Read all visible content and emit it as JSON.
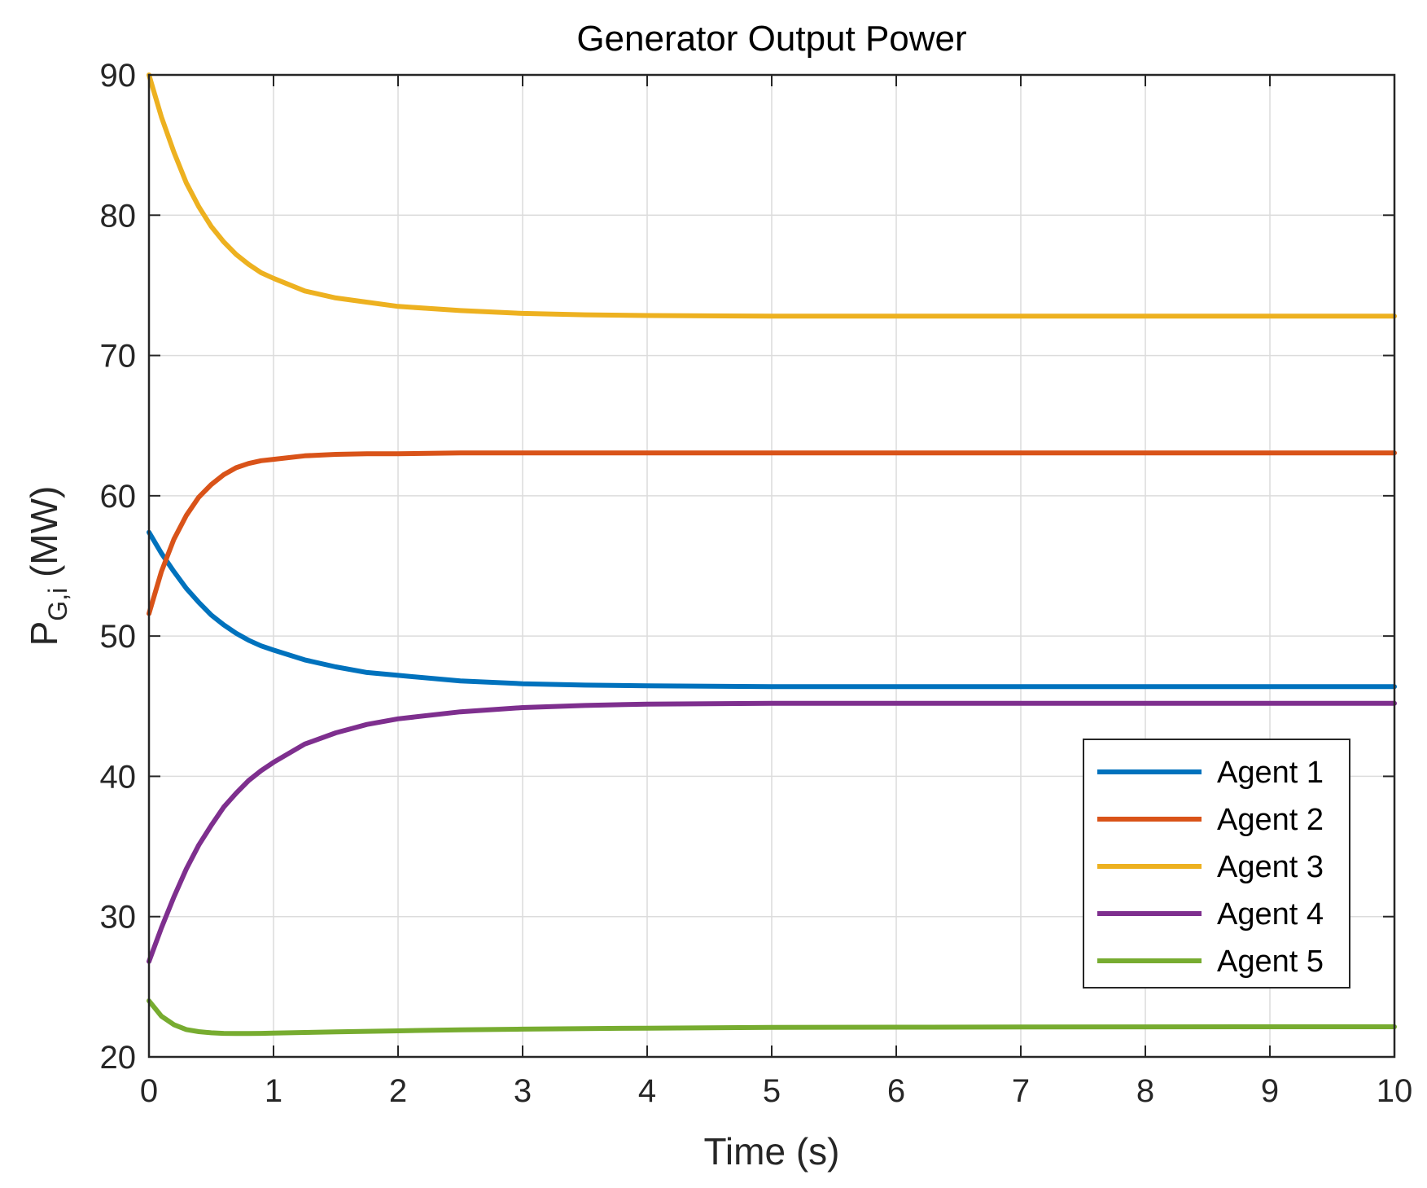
{
  "chart_data": {
    "type": "line",
    "title": "Generator Output Power",
    "xlabel": "Time (s)",
    "ylabel": {
      "main": "P",
      "sub": "G,i",
      "unit": " (MW)"
    },
    "xlim": [
      0,
      10
    ],
    "ylim": [
      20,
      90
    ],
    "xticks": [
      "0",
      "1",
      "2",
      "3",
      "4",
      "5",
      "6",
      "7",
      "8",
      "9",
      "10"
    ],
    "yticks": [
      "20",
      "30",
      "40",
      "50",
      "60",
      "70",
      "80",
      "90"
    ],
    "grid": true,
    "legend_position": "bottom-right",
    "x": [
      0,
      0.1,
      0.2,
      0.3,
      0.4,
      0.5,
      0.6,
      0.7,
      0.8,
      0.9,
      1.0,
      1.25,
      1.5,
      1.75,
      2.0,
      2.5,
      3.0,
      3.5,
      4.0,
      5.0,
      6.0,
      7.0,
      8.0,
      9.0,
      10.0
    ],
    "series": [
      {
        "name": "Agent 1",
        "color": "#0072BD",
        "values": [
          57.4,
          55.9,
          54.6,
          53.4,
          52.4,
          51.5,
          50.8,
          50.2,
          49.7,
          49.3,
          49.0,
          48.3,
          47.8,
          47.4,
          47.2,
          46.8,
          46.6,
          46.5,
          46.45,
          46.4,
          46.4,
          46.4,
          46.4,
          46.4,
          46.4
        ]
      },
      {
        "name": "Agent 2",
        "color": "#D95319",
        "values": [
          51.6,
          54.6,
          56.9,
          58.6,
          59.9,
          60.8,
          61.5,
          62.0,
          62.3,
          62.5,
          62.6,
          62.85,
          62.95,
          63.0,
          63.0,
          63.05,
          63.05,
          63.05,
          63.05,
          63.05,
          63.05,
          63.05,
          63.05,
          63.05,
          63.05
        ]
      },
      {
        "name": "Agent 3",
        "color": "#EDB120",
        "values": [
          90.0,
          87.0,
          84.5,
          82.3,
          80.6,
          79.2,
          78.1,
          77.2,
          76.5,
          75.9,
          75.5,
          74.6,
          74.1,
          73.8,
          73.5,
          73.2,
          73.0,
          72.9,
          72.85,
          72.8,
          72.8,
          72.8,
          72.8,
          72.8,
          72.8
        ]
      },
      {
        "name": "Agent 4",
        "color": "#7E2F8E",
        "values": [
          26.8,
          29.2,
          31.4,
          33.4,
          35.1,
          36.5,
          37.8,
          38.8,
          39.7,
          40.4,
          41.0,
          42.3,
          43.1,
          43.7,
          44.1,
          44.6,
          44.9,
          45.05,
          45.15,
          45.2,
          45.2,
          45.2,
          45.2,
          45.2,
          45.2
        ]
      },
      {
        "name": "Agent 5",
        "color": "#77AC30",
        "values": [
          24.0,
          22.9,
          22.3,
          21.95,
          21.8,
          21.72,
          21.68,
          21.67,
          21.67,
          21.68,
          21.7,
          21.74,
          21.78,
          21.82,
          21.86,
          21.93,
          21.98,
          22.02,
          22.05,
          22.1,
          22.12,
          22.13,
          22.14,
          22.15,
          22.15
        ]
      }
    ]
  }
}
